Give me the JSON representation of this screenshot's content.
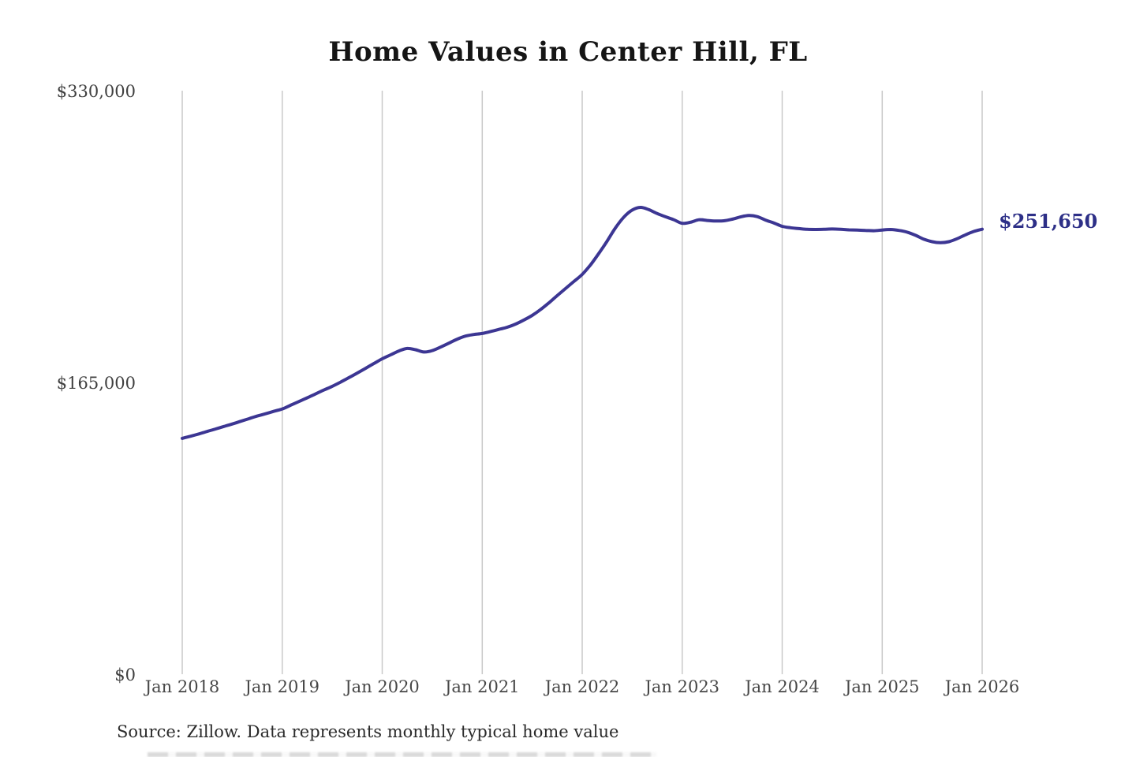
{
  "header": {
    "title": "Home Values in Center Hill, FL"
  },
  "chart_data": {
    "type": "line",
    "title": "Home Values in Center Hill, FL",
    "series_name": "Monthly typical home value",
    "unit": "USD",
    "frequency": "monthly",
    "x_start": "Jan 2018",
    "x_end": "Jan 2026",
    "x_tick_labels": [
      "Jan 2018",
      "Jan 2019",
      "Jan 2020",
      "Jan 2021",
      "Jan 2022",
      "Jan 2023",
      "Jan 2024",
      "Jan 2025",
      "Jan 2026"
    ],
    "y_tick_labels": [
      "$330,000",
      "$165,000",
      "$0"
    ],
    "ylim": [
      0,
      330000
    ],
    "grid": "vertical-only",
    "end_label": "$251,650",
    "end_value": 251650,
    "line_color": "#3c3693",
    "end_label_color": "#2d2f87",
    "gridline_color": "#c9c9c9",
    "values": [
      133400,
      134600,
      135900,
      137300,
      138700,
      140100,
      141500,
      143000,
      144500,
      146000,
      147300,
      148700,
      150000,
      152100,
      154200,
      156300,
      158500,
      160700,
      162800,
      165200,
      167700,
      170300,
      173000,
      175700,
      178400,
      180600,
      182800,
      184200,
      183500,
      182200,
      183000,
      185000,
      187200,
      189500,
      191200,
      192100,
      192700,
      193800,
      195000,
      196200,
      198000,
      200300,
      202900,
      206200,
      210000,
      214100,
      218100,
      222100,
      226100,
      231500,
      238000,
      245000,
      252500,
      258500,
      262500,
      264000,
      262700,
      260500,
      258700,
      257000,
      255000,
      255600,
      257000,
      256600,
      256300,
      256400,
      257300,
      258600,
      259400,
      258800,
      256800,
      255200,
      253300,
      252500,
      252000,
      251600,
      251500,
      251600,
      251800,
      251600,
      251300,
      251200,
      251000,
      250800,
      251200,
      251500,
      251000,
      250000,
      248200,
      246000,
      244600,
      244000,
      244600,
      246300,
      248500,
      250400,
      251650
    ]
  },
  "footer": {
    "source": "Source: Zillow. Data represents monthly typical home value"
  }
}
